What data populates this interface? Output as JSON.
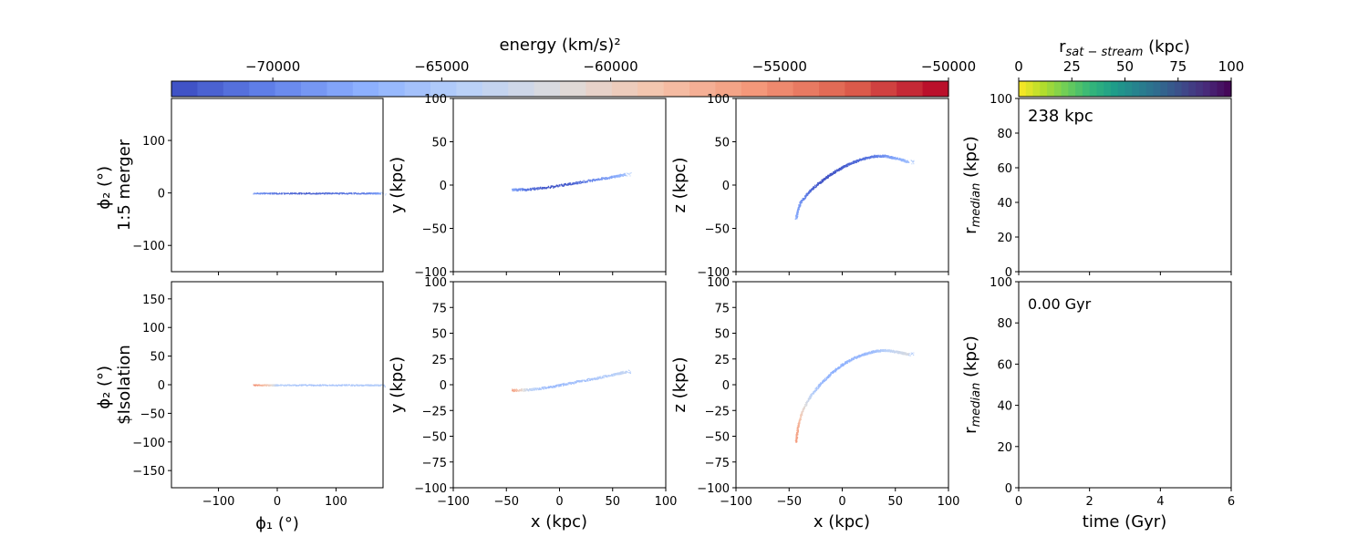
{
  "figure": {
    "colorbar_energy": {
      "label": "energy (km/s)²",
      "ticks": [
        "−70000",
        "−65000",
        "−60000",
        "−55000",
        "−50000"
      ],
      "tick_values": [
        -70000,
        -65000,
        -60000,
        -55000,
        -50000
      ],
      "range": [
        -73000,
        -50000
      ],
      "colormap": "coolwarm",
      "colors": [
        "#3b4cc0",
        "#6282ea",
        "#8db0fe",
        "#b8d0f9",
        "#dddcdc",
        "#f5c4ac",
        "#f4987a",
        "#de604d",
        "#b40426"
      ]
    },
    "colorbar_rsat": {
      "label_main": "r",
      "label_sub": "sat − stream",
      "label_unit": " (kpc)",
      "ticks": [
        "0",
        "25",
        "50",
        "75",
        "100"
      ],
      "tick_values": [
        0,
        25,
        50,
        75,
        100
      ],
      "range": [
        0,
        100
      ],
      "colormap": "viridis_r",
      "colors": [
        "#fde725",
        "#b5de2b",
        "#6ece58",
        "#35b779",
        "#1f9e89",
        "#26828e",
        "#31688e",
        "#3e4989",
        "#482878",
        "#440154"
      ]
    },
    "rows": [
      {
        "row_label_top": "ϕ₂ (°)",
        "row_label_bottom": "1:5 merger",
        "annotation": "238 kpc"
      },
      {
        "row_label_top": "ϕ₂ (°)",
        "row_label_bottom": "$Isolation",
        "annotation": "0.00 Gyr"
      }
    ],
    "axis_labels": {
      "phi1": "ϕ₁ (°)",
      "x": "x (kpc)",
      "y": "y (kpc)",
      "z": "z (kpc)",
      "r_main": "r",
      "r_sub": "median",
      "r_unit": " (kpc)",
      "time": "time (Gyr)"
    }
  },
  "chart_data": [
    {
      "id": "phi-top",
      "type": "scatter",
      "xlim": [
        -180,
        180
      ],
      "ylim": [
        -150,
        180
      ],
      "xticks": [
        -100,
        0,
        100
      ],
      "yticks": [
        -100,
        0,
        100
      ],
      "stream": {
        "kind": "line",
        "x": [
          -40,
          0,
          50,
          100,
          150,
          175
        ],
        "y": [
          0,
          0,
          0,
          0,
          0,
          0
        ],
        "energy": [
          -69000,
          -71000,
          -72000,
          -71000,
          -70500,
          -68000
        ]
      }
    },
    {
      "id": "xy-top",
      "type": "scatter",
      "xlim": [
        -100,
        100
      ],
      "ylim": [
        -100,
        100
      ],
      "xticks": [
        -100,
        -50,
        0,
        50,
        100
      ],
      "yticks": [
        -100,
        -50,
        0,
        50,
        100
      ],
      "stream": {
        "kind": "path",
        "x": [
          -45,
          -30,
          -10,
          10,
          30,
          50,
          62
        ],
        "y": [
          -5,
          -4.5,
          -2,
          2,
          6,
          10,
          13
        ],
        "energy": [
          -68000,
          -71000,
          -72500,
          -72000,
          -70000,
          -68000,
          -66000
        ]
      }
    },
    {
      "id": "xz-top",
      "type": "scatter",
      "xlim": [
        -100,
        100
      ],
      "ylim": [
        -100,
        100
      ],
      "xticks": [
        -100,
        -50,
        0,
        50,
        100
      ],
      "yticks": [
        -100,
        -50,
        0,
        50,
        100
      ],
      "stream": {
        "kind": "path",
        "x": [
          -44,
          -40,
          -30,
          -20,
          -10,
          0,
          10,
          20,
          30,
          40,
          52,
          62
        ],
        "y": [
          -38,
          -20,
          -5,
          5,
          14,
          21,
          27,
          31,
          34,
          34,
          31,
          27
        ],
        "energy": [
          -67500,
          -69000,
          -71500,
          -72500,
          -72500,
          -72000,
          -71500,
          -71000,
          -70500,
          -69000,
          -67500,
          -66000
        ]
      }
    },
    {
      "id": "r-top",
      "type": "line",
      "xlim": [
        0,
        6
      ],
      "ylim": [
        0,
        100
      ],
      "xticks": [
        0,
        2,
        4,
        6
      ],
      "yticks": [
        0,
        20,
        40,
        60,
        80,
        100
      ],
      "series": []
    },
    {
      "id": "phi-bot",
      "type": "scatter",
      "xlim": [
        -180,
        180
      ],
      "ylim": [
        -180,
        180
      ],
      "xticks": [
        -100,
        0,
        100
      ],
      "yticks": [
        -150,
        -100,
        -50,
        0,
        50,
        100,
        150
      ],
      "stream": {
        "kind": "line",
        "x": [
          -40,
          -10,
          0,
          50,
          100,
          150,
          175
        ],
        "y": [
          0,
          0,
          0,
          0,
          0,
          0,
          0
        ],
        "energy": [
          -55000,
          -60500,
          -64500,
          -65500,
          -65500,
          -65000,
          -64500
        ]
      }
    },
    {
      "id": "xy-bot",
      "type": "scatter",
      "xlim": [
        -100,
        100
      ],
      "ylim": [
        -100,
        100
      ],
      "xticks": [
        -100,
        -50,
        0,
        50,
        100
      ],
      "yticks": [
        -100,
        -75,
        -50,
        -25,
        0,
        25,
        50,
        75,
        100
      ],
      "stream": {
        "kind": "path",
        "x": [
          -45,
          -30,
          -10,
          10,
          30,
          50,
          62
        ],
        "y": [
          -5,
          -4.5,
          -2,
          2,
          6,
          10,
          13
        ],
        "energy": [
          -56000,
          -63500,
          -66500,
          -66000,
          -65500,
          -64500,
          -63500
        ]
      }
    },
    {
      "id": "xz-bot",
      "type": "scatter",
      "xlim": [
        -100,
        100
      ],
      "ylim": [
        -100,
        100
      ],
      "xticks": [
        -100,
        -50,
        0,
        50,
        100
      ],
      "yticks": [
        -100,
        -75,
        -50,
        -25,
        0,
        25,
        50,
        75,
        100
      ],
      "stream": {
        "kind": "path",
        "x": [
          -44,
          -42,
          -38,
          -30,
          -20,
          -10,
          0,
          10,
          20,
          30,
          40,
          52,
          62
        ],
        "y": [
          -55,
          -40,
          -25,
          -10,
          2,
          12,
          20,
          26,
          30,
          33,
          34,
          32,
          30
        ],
        "energy": [
          -56000,
          -57000,
          -60000,
          -64000,
          -66500,
          -67000,
          -67000,
          -66500,
          -66500,
          -66000,
          -64500,
          -63000,
          -62000
        ]
      }
    },
    {
      "id": "r-bot",
      "type": "line",
      "xlim": [
        0,
        6
      ],
      "ylim": [
        0,
        100
      ],
      "xticks": [
        0,
        2,
        4,
        6
      ],
      "yticks": [
        0,
        20,
        40,
        60,
        80,
        100
      ],
      "series": []
    }
  ]
}
